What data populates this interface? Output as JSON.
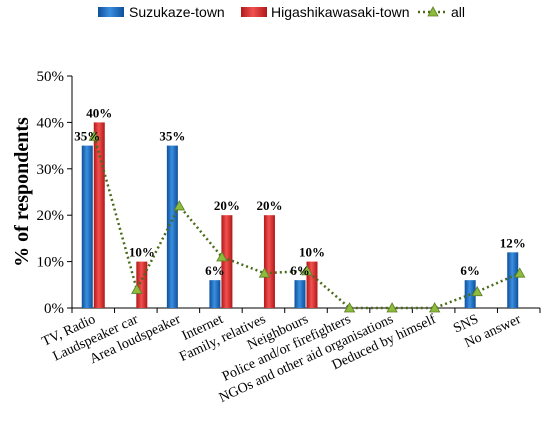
{
  "chart_data": {
    "type": "bar",
    "ylabel": "% of respondents",
    "ylim": [
      0,
      50
    ],
    "yticks": [
      "0%",
      "10%",
      "20%",
      "30%",
      "40%",
      "50%"
    ],
    "categories": [
      "TV, Radio",
      "Laudspeaker car",
      "Area loudspeaker",
      "Internet",
      "Family, relatives",
      "Neighbours",
      "Police and/or firefighters",
      "NGOs and other aid organisations",
      "Deduced by himself",
      "SNS",
      "No answer"
    ],
    "series": [
      {
        "name": "Suzukaze-town",
        "type": "bar",
        "color": "#1f6fc0",
        "values": [
          35,
          0,
          35,
          6,
          0,
          6,
          0,
          0,
          0,
          6,
          12
        ],
        "labels": [
          "35%",
          "",
          "35%",
          "6%",
          "",
          "6%",
          "",
          "",
          "",
          "6%",
          "12%"
        ]
      },
      {
        "name": "Higashikawasaki-town",
        "type": "bar",
        "color": "#e03232",
        "values": [
          40,
          10,
          0,
          20,
          20,
          10,
          0,
          0,
          0,
          0,
          0
        ],
        "labels": [
          "40%",
          "10%",
          "",
          "20%",
          "20%",
          "10%",
          "",
          "",
          "",
          "",
          ""
        ]
      },
      {
        "name": "all",
        "type": "line",
        "color": "#4a6b1a",
        "marker_color": "#8dbb3c",
        "style": "dotted",
        "values": [
          37,
          4,
          22,
          11,
          7.5,
          8,
          0,
          0,
          0,
          3.5,
          7.5
        ]
      }
    ],
    "legend_position": "top",
    "grid": false
  }
}
